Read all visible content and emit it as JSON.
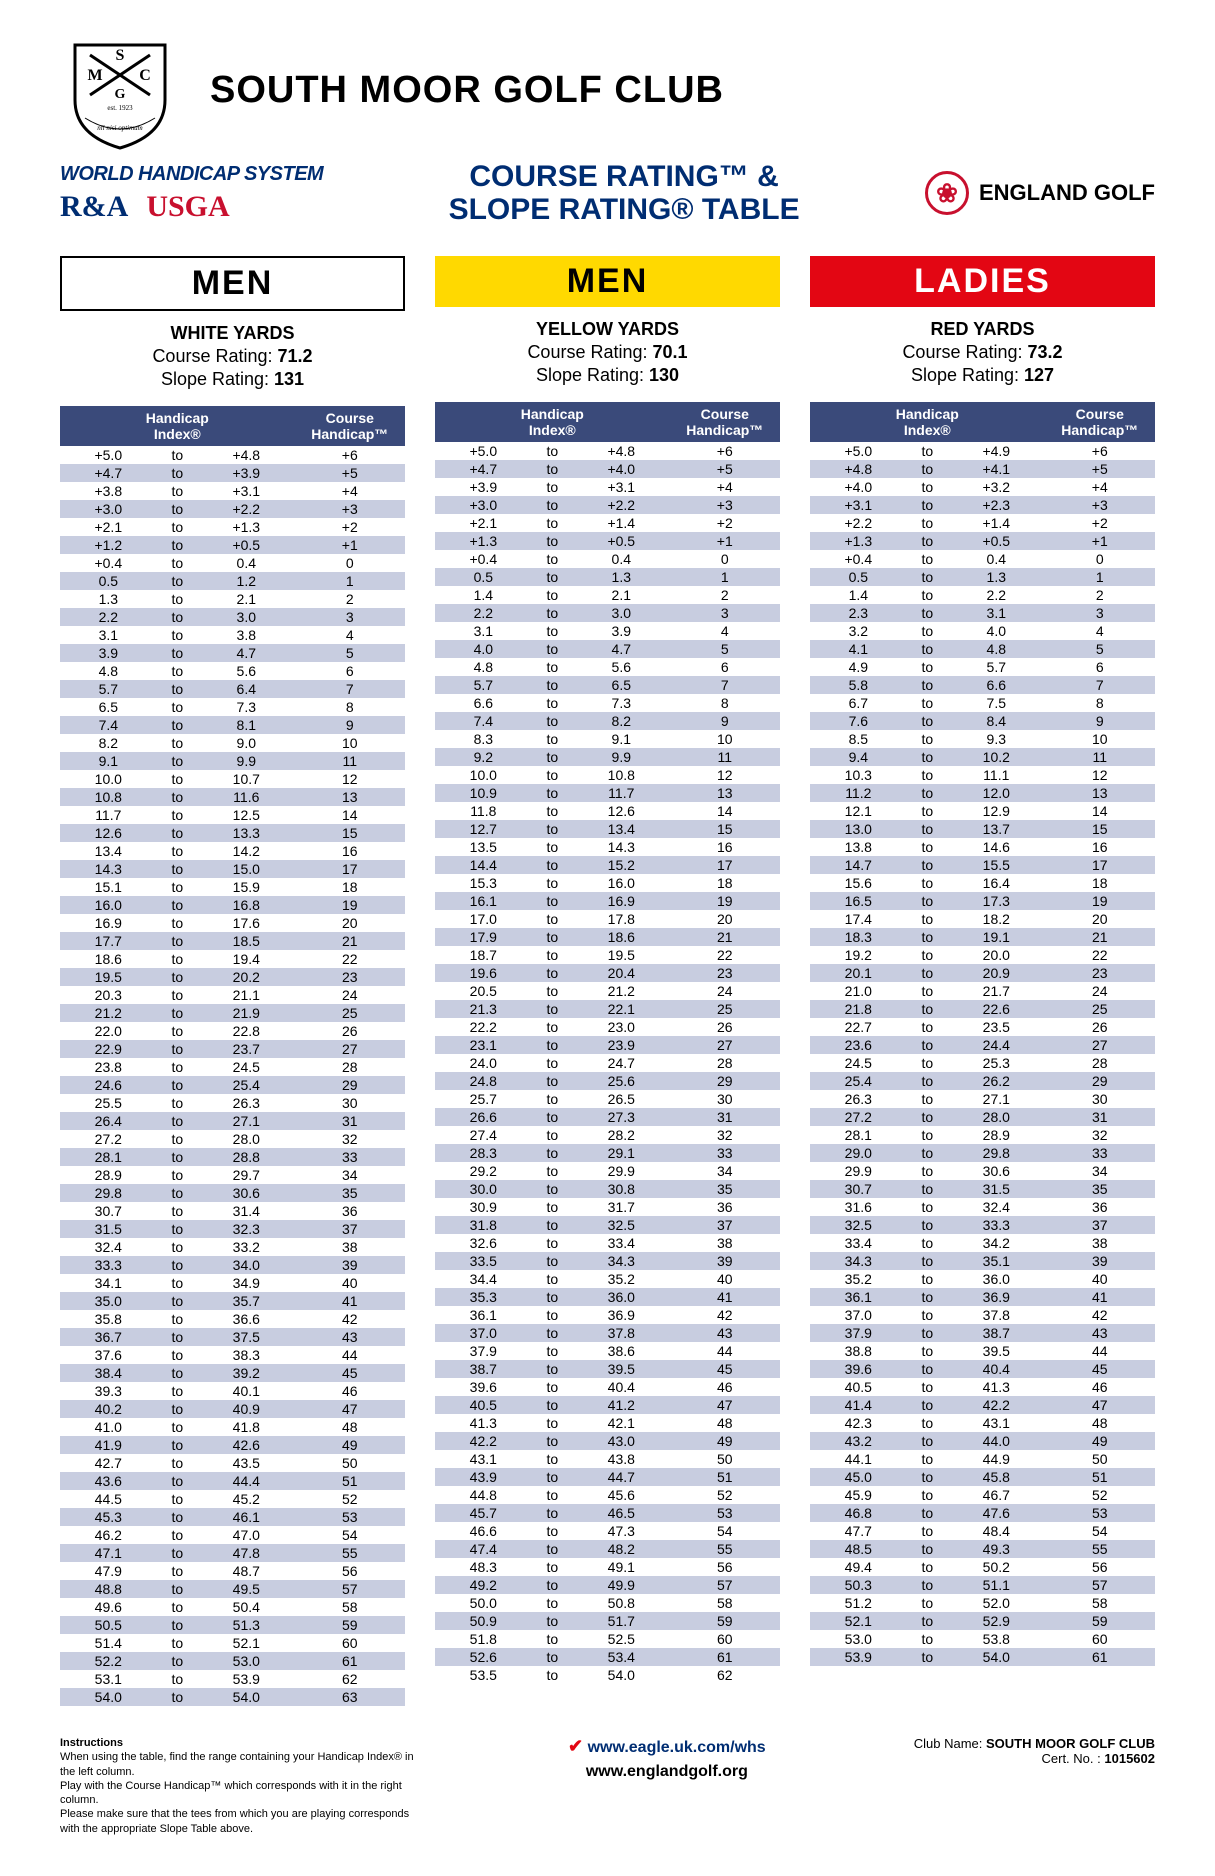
{
  "club_name": "SOUTH MOOR GOLF CLUB",
  "whs_label": "WORLD HANDICAP SYSTEM",
  "ra_label": "R&A",
  "usga_label": "USGA",
  "center_title_line1": "COURSE RATING™ &",
  "center_title_line2": "SLOPE RATING® TABLE",
  "england_golf_label": "ENGLAND GOLF",
  "tees": [
    {
      "gender": "MEN",
      "banner_class": "banner-white",
      "yards": "WHITE YARDS",
      "course_rating": "71.2",
      "slope_rating": "131",
      "rows": [
        [
          "+5.0",
          "+4.8",
          "+6"
        ],
        [
          "+4.7",
          "+3.9",
          "+5"
        ],
        [
          "+3.8",
          "+3.1",
          "+4"
        ],
        [
          "+3.0",
          "+2.2",
          "+3"
        ],
        [
          "+2.1",
          "+1.3",
          "+2"
        ],
        [
          "+1.2",
          "+0.5",
          "+1"
        ],
        [
          "+0.4",
          "0.4",
          "0"
        ],
        [
          "0.5",
          "1.2",
          "1"
        ],
        [
          "1.3",
          "2.1",
          "2"
        ],
        [
          "2.2",
          "3.0",
          "3"
        ],
        [
          "3.1",
          "3.8",
          "4"
        ],
        [
          "3.9",
          "4.7",
          "5"
        ],
        [
          "4.8",
          "5.6",
          "6"
        ],
        [
          "5.7",
          "6.4",
          "7"
        ],
        [
          "6.5",
          "7.3",
          "8"
        ],
        [
          "7.4",
          "8.1",
          "9"
        ],
        [
          "8.2",
          "9.0",
          "10"
        ],
        [
          "9.1",
          "9.9",
          "11"
        ],
        [
          "10.0",
          "10.7",
          "12"
        ],
        [
          "10.8",
          "11.6",
          "13"
        ],
        [
          "11.7",
          "12.5",
          "14"
        ],
        [
          "12.6",
          "13.3",
          "15"
        ],
        [
          "13.4",
          "14.2",
          "16"
        ],
        [
          "14.3",
          "15.0",
          "17"
        ],
        [
          "15.1",
          "15.9",
          "18"
        ],
        [
          "16.0",
          "16.8",
          "19"
        ],
        [
          "16.9",
          "17.6",
          "20"
        ],
        [
          "17.7",
          "18.5",
          "21"
        ],
        [
          "18.6",
          "19.4",
          "22"
        ],
        [
          "19.5",
          "20.2",
          "23"
        ],
        [
          "20.3",
          "21.1",
          "24"
        ],
        [
          "21.2",
          "21.9",
          "25"
        ],
        [
          "22.0",
          "22.8",
          "26"
        ],
        [
          "22.9",
          "23.7",
          "27"
        ],
        [
          "23.8",
          "24.5",
          "28"
        ],
        [
          "24.6",
          "25.4",
          "29"
        ],
        [
          "25.5",
          "26.3",
          "30"
        ],
        [
          "26.4",
          "27.1",
          "31"
        ],
        [
          "27.2",
          "28.0",
          "32"
        ],
        [
          "28.1",
          "28.8",
          "33"
        ],
        [
          "28.9",
          "29.7",
          "34"
        ],
        [
          "29.8",
          "30.6",
          "35"
        ],
        [
          "30.7",
          "31.4",
          "36"
        ],
        [
          "31.5",
          "32.3",
          "37"
        ],
        [
          "32.4",
          "33.2",
          "38"
        ],
        [
          "33.3",
          "34.0",
          "39"
        ],
        [
          "34.1",
          "34.9",
          "40"
        ],
        [
          "35.0",
          "35.7",
          "41"
        ],
        [
          "35.8",
          "36.6",
          "42"
        ],
        [
          "36.7",
          "37.5",
          "43"
        ],
        [
          "37.6",
          "38.3",
          "44"
        ],
        [
          "38.4",
          "39.2",
          "45"
        ],
        [
          "39.3",
          "40.1",
          "46"
        ],
        [
          "40.2",
          "40.9",
          "47"
        ],
        [
          "41.0",
          "41.8",
          "48"
        ],
        [
          "41.9",
          "42.6",
          "49"
        ],
        [
          "42.7",
          "43.5",
          "50"
        ],
        [
          "43.6",
          "44.4",
          "51"
        ],
        [
          "44.5",
          "45.2",
          "52"
        ],
        [
          "45.3",
          "46.1",
          "53"
        ],
        [
          "46.2",
          "47.0",
          "54"
        ],
        [
          "47.1",
          "47.8",
          "55"
        ],
        [
          "47.9",
          "48.7",
          "56"
        ],
        [
          "48.8",
          "49.5",
          "57"
        ],
        [
          "49.6",
          "50.4",
          "58"
        ],
        [
          "50.5",
          "51.3",
          "59"
        ],
        [
          "51.4",
          "52.1",
          "60"
        ],
        [
          "52.2",
          "53.0",
          "61"
        ],
        [
          "53.1",
          "53.9",
          "62"
        ],
        [
          "54.0",
          "54.0",
          "63"
        ]
      ]
    },
    {
      "gender": "MEN",
      "banner_class": "banner-yellow",
      "yards": "YELLOW YARDS",
      "course_rating": "70.1",
      "slope_rating": "130",
      "rows": [
        [
          "+5.0",
          "+4.8",
          "+6"
        ],
        [
          "+4.7",
          "+4.0",
          "+5"
        ],
        [
          "+3.9",
          "+3.1",
          "+4"
        ],
        [
          "+3.0",
          "+2.2",
          "+3"
        ],
        [
          "+2.1",
          "+1.4",
          "+2"
        ],
        [
          "+1.3",
          "+0.5",
          "+1"
        ],
        [
          "+0.4",
          "0.4",
          "0"
        ],
        [
          "0.5",
          "1.3",
          "1"
        ],
        [
          "1.4",
          "2.1",
          "2"
        ],
        [
          "2.2",
          "3.0",
          "3"
        ],
        [
          "3.1",
          "3.9",
          "4"
        ],
        [
          "4.0",
          "4.7",
          "5"
        ],
        [
          "4.8",
          "5.6",
          "6"
        ],
        [
          "5.7",
          "6.5",
          "7"
        ],
        [
          "6.6",
          "7.3",
          "8"
        ],
        [
          "7.4",
          "8.2",
          "9"
        ],
        [
          "8.3",
          "9.1",
          "10"
        ],
        [
          "9.2",
          "9.9",
          "11"
        ],
        [
          "10.0",
          "10.8",
          "12"
        ],
        [
          "10.9",
          "11.7",
          "13"
        ],
        [
          "11.8",
          "12.6",
          "14"
        ],
        [
          "12.7",
          "13.4",
          "15"
        ],
        [
          "13.5",
          "14.3",
          "16"
        ],
        [
          "14.4",
          "15.2",
          "17"
        ],
        [
          "15.3",
          "16.0",
          "18"
        ],
        [
          "16.1",
          "16.9",
          "19"
        ],
        [
          "17.0",
          "17.8",
          "20"
        ],
        [
          "17.9",
          "18.6",
          "21"
        ],
        [
          "18.7",
          "19.5",
          "22"
        ],
        [
          "19.6",
          "20.4",
          "23"
        ],
        [
          "20.5",
          "21.2",
          "24"
        ],
        [
          "21.3",
          "22.1",
          "25"
        ],
        [
          "22.2",
          "23.0",
          "26"
        ],
        [
          "23.1",
          "23.9",
          "27"
        ],
        [
          "24.0",
          "24.7",
          "28"
        ],
        [
          "24.8",
          "25.6",
          "29"
        ],
        [
          "25.7",
          "26.5",
          "30"
        ],
        [
          "26.6",
          "27.3",
          "31"
        ],
        [
          "27.4",
          "28.2",
          "32"
        ],
        [
          "28.3",
          "29.1",
          "33"
        ],
        [
          "29.2",
          "29.9",
          "34"
        ],
        [
          "30.0",
          "30.8",
          "35"
        ],
        [
          "30.9",
          "31.7",
          "36"
        ],
        [
          "31.8",
          "32.5",
          "37"
        ],
        [
          "32.6",
          "33.4",
          "38"
        ],
        [
          "33.5",
          "34.3",
          "39"
        ],
        [
          "34.4",
          "35.2",
          "40"
        ],
        [
          "35.3",
          "36.0",
          "41"
        ],
        [
          "36.1",
          "36.9",
          "42"
        ],
        [
          "37.0",
          "37.8",
          "43"
        ],
        [
          "37.9",
          "38.6",
          "44"
        ],
        [
          "38.7",
          "39.5",
          "45"
        ],
        [
          "39.6",
          "40.4",
          "46"
        ],
        [
          "40.5",
          "41.2",
          "47"
        ],
        [
          "41.3",
          "42.1",
          "48"
        ],
        [
          "42.2",
          "43.0",
          "49"
        ],
        [
          "43.1",
          "43.8",
          "50"
        ],
        [
          "43.9",
          "44.7",
          "51"
        ],
        [
          "44.8",
          "45.6",
          "52"
        ],
        [
          "45.7",
          "46.5",
          "53"
        ],
        [
          "46.6",
          "47.3",
          "54"
        ],
        [
          "47.4",
          "48.2",
          "55"
        ],
        [
          "48.3",
          "49.1",
          "56"
        ],
        [
          "49.2",
          "49.9",
          "57"
        ],
        [
          "50.0",
          "50.8",
          "58"
        ],
        [
          "50.9",
          "51.7",
          "59"
        ],
        [
          "51.8",
          "52.5",
          "60"
        ],
        [
          "52.6",
          "53.4",
          "61"
        ],
        [
          "53.5",
          "54.0",
          "62"
        ]
      ]
    },
    {
      "gender": "LADIES",
      "banner_class": "banner-red",
      "yards": "RED YARDS",
      "course_rating": "73.2",
      "slope_rating": "127",
      "rows": [
        [
          "+5.0",
          "+4.9",
          "+6"
        ],
        [
          "+4.8",
          "+4.1",
          "+5"
        ],
        [
          "+4.0",
          "+3.2",
          "+4"
        ],
        [
          "+3.1",
          "+2.3",
          "+3"
        ],
        [
          "+2.2",
          "+1.4",
          "+2"
        ],
        [
          "+1.3",
          "+0.5",
          "+1"
        ],
        [
          "+0.4",
          "0.4",
          "0"
        ],
        [
          "0.5",
          "1.3",
          "1"
        ],
        [
          "1.4",
          "2.2",
          "2"
        ],
        [
          "2.3",
          "3.1",
          "3"
        ],
        [
          "3.2",
          "4.0",
          "4"
        ],
        [
          "4.1",
          "4.8",
          "5"
        ],
        [
          "4.9",
          "5.7",
          "6"
        ],
        [
          "5.8",
          "6.6",
          "7"
        ],
        [
          "6.7",
          "7.5",
          "8"
        ],
        [
          "7.6",
          "8.4",
          "9"
        ],
        [
          "8.5",
          "9.3",
          "10"
        ],
        [
          "9.4",
          "10.2",
          "11"
        ],
        [
          "10.3",
          "11.1",
          "12"
        ],
        [
          "11.2",
          "12.0",
          "13"
        ],
        [
          "12.1",
          "12.9",
          "14"
        ],
        [
          "13.0",
          "13.7",
          "15"
        ],
        [
          "13.8",
          "14.6",
          "16"
        ],
        [
          "14.7",
          "15.5",
          "17"
        ],
        [
          "15.6",
          "16.4",
          "18"
        ],
        [
          "16.5",
          "17.3",
          "19"
        ],
        [
          "17.4",
          "18.2",
          "20"
        ],
        [
          "18.3",
          "19.1",
          "21"
        ],
        [
          "19.2",
          "20.0",
          "22"
        ],
        [
          "20.1",
          "20.9",
          "23"
        ],
        [
          "21.0",
          "21.7",
          "24"
        ],
        [
          "21.8",
          "22.6",
          "25"
        ],
        [
          "22.7",
          "23.5",
          "26"
        ],
        [
          "23.6",
          "24.4",
          "27"
        ],
        [
          "24.5",
          "25.3",
          "28"
        ],
        [
          "25.4",
          "26.2",
          "29"
        ],
        [
          "26.3",
          "27.1",
          "30"
        ],
        [
          "27.2",
          "28.0",
          "31"
        ],
        [
          "28.1",
          "28.9",
          "32"
        ],
        [
          "29.0",
          "29.8",
          "33"
        ],
        [
          "29.9",
          "30.6",
          "34"
        ],
        [
          "30.7",
          "31.5",
          "35"
        ],
        [
          "31.6",
          "32.4",
          "36"
        ],
        [
          "32.5",
          "33.3",
          "37"
        ],
        [
          "33.4",
          "34.2",
          "38"
        ],
        [
          "34.3",
          "35.1",
          "39"
        ],
        [
          "35.2",
          "36.0",
          "40"
        ],
        [
          "36.1",
          "36.9",
          "41"
        ],
        [
          "37.0",
          "37.8",
          "42"
        ],
        [
          "37.9",
          "38.7",
          "43"
        ],
        [
          "38.8",
          "39.5",
          "44"
        ],
        [
          "39.6",
          "40.4",
          "45"
        ],
        [
          "40.5",
          "41.3",
          "46"
        ],
        [
          "41.4",
          "42.2",
          "47"
        ],
        [
          "42.3",
          "43.1",
          "48"
        ],
        [
          "43.2",
          "44.0",
          "49"
        ],
        [
          "44.1",
          "44.9",
          "50"
        ],
        [
          "45.0",
          "45.8",
          "51"
        ],
        [
          "45.9",
          "46.7",
          "52"
        ],
        [
          "46.8",
          "47.6",
          "53"
        ],
        [
          "47.7",
          "48.4",
          "54"
        ],
        [
          "48.5",
          "49.3",
          "55"
        ],
        [
          "49.4",
          "50.2",
          "56"
        ],
        [
          "50.3",
          "51.1",
          "57"
        ],
        [
          "51.2",
          "52.0",
          "58"
        ],
        [
          "52.1",
          "52.9",
          "59"
        ],
        [
          "53.0",
          "53.8",
          "60"
        ],
        [
          "53.9",
          "54.0",
          "61"
        ]
      ]
    }
  ],
  "table_headers": {
    "hi": "Handicap Index®",
    "ch": "Course Handicap™"
  },
  "cr_label": "Course Rating:",
  "sr_label": "Slope Rating:",
  "to_label": "to",
  "instructions_title": "Instructions",
  "instructions_lines": [
    "When using the table, find the range containing your Handicap Index® in the left column.",
    "Play with the Course Handicap™ which corresponds with it in the right column.",
    "Please make sure that the tees from which you are playing corresponds",
    "with the appropriate Slope Table above."
  ],
  "eagle_url": "www.eagle.uk.com/whs",
  "eg_url": "www.englandgolf.org",
  "footer_club_label": "Club Name:",
  "footer_club_name": "SOUTH MOOR GOLF CLUB",
  "cert_label": "Cert. No. :",
  "cert_no": "1015602"
}
